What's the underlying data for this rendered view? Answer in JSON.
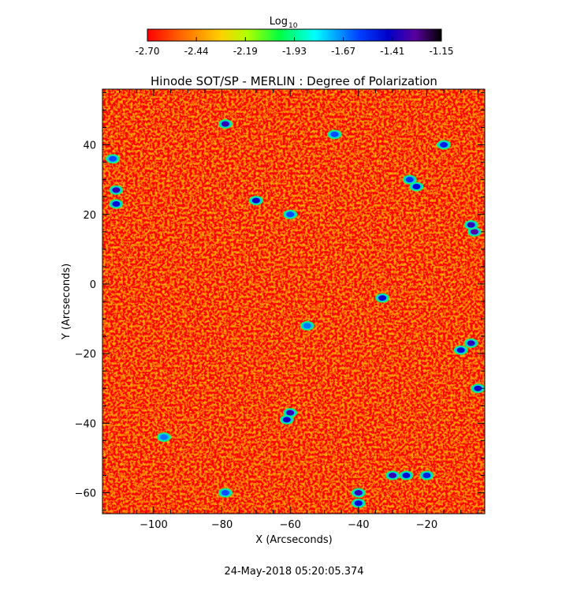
{
  "chart_data": {
    "type": "heatmap",
    "title": "Hinode SOT/SP - MERLIN : Degree of Polarization",
    "xlabel": "X (Arcseconds)",
    "ylabel": "Y (Arcseconds)",
    "xlim": [
      -115,
      -3
    ],
    "ylim": [
      -66,
      56
    ],
    "x_ticks": [
      -100,
      -80,
      -60,
      -40,
      -20
    ],
    "y_ticks": [
      -60,
      -40,
      -20,
      0,
      20,
      40
    ],
    "colorbar": {
      "label_base": "Log",
      "label_sub": "10",
      "min": -2.7,
      "max": -1.15,
      "ticks": [
        "-2.70",
        "-2.44",
        "-2.19",
        "-1.93",
        "-1.67",
        "-1.41",
        "-1.15"
      ],
      "colormap": "rainbow (red → yellow → green → cyan → blue → purple → black)"
    },
    "background_level": -2.55,
    "strong_regions": [
      {
        "x": -79,
        "y": 46,
        "value": -1.35
      },
      {
        "x": -111,
        "y": 27,
        "value": -1.35
      },
      {
        "x": -111,
        "y": 23,
        "value": -1.45
      },
      {
        "x": -112,
        "y": 36,
        "value": -1.6
      },
      {
        "x": -70,
        "y": 24,
        "value": -1.4
      },
      {
        "x": -6,
        "y": 15,
        "value": -1.3
      },
      {
        "x": -7,
        "y": 17,
        "value": -1.35
      },
      {
        "x": -15,
        "y": 40,
        "value": -1.5
      },
      {
        "x": -23,
        "y": 28,
        "value": -1.45
      },
      {
        "x": -25,
        "y": 30,
        "value": -1.55
      },
      {
        "x": -60,
        "y": 20,
        "value": -1.6
      },
      {
        "x": -33,
        "y": -4,
        "value": -1.45
      },
      {
        "x": -60,
        "y": -37,
        "value": -1.35
      },
      {
        "x": -61,
        "y": -39,
        "value": -1.4
      },
      {
        "x": -7,
        "y": -17,
        "value": -1.35
      },
      {
        "x": -10,
        "y": -19,
        "value": -1.45
      },
      {
        "x": -5,
        "y": -30,
        "value": -1.4
      },
      {
        "x": -40,
        "y": -60,
        "value": -1.35
      },
      {
        "x": -40,
        "y": -63,
        "value": -1.45
      },
      {
        "x": -30,
        "y": -55,
        "value": -1.35
      },
      {
        "x": -26,
        "y": -55,
        "value": -1.45
      },
      {
        "x": -20,
        "y": -55,
        "value": -1.5
      },
      {
        "x": -55,
        "y": -12,
        "value": -1.65
      },
      {
        "x": -47,
        "y": 43,
        "value": -1.6
      },
      {
        "x": -97,
        "y": -44,
        "value": -1.65
      },
      {
        "x": -79,
        "y": -60,
        "value": -1.6
      }
    ],
    "grid": false,
    "legend": "colorbar at top"
  },
  "footer": {
    "timestamp": "24-May-2018 05:20:05.374"
  }
}
